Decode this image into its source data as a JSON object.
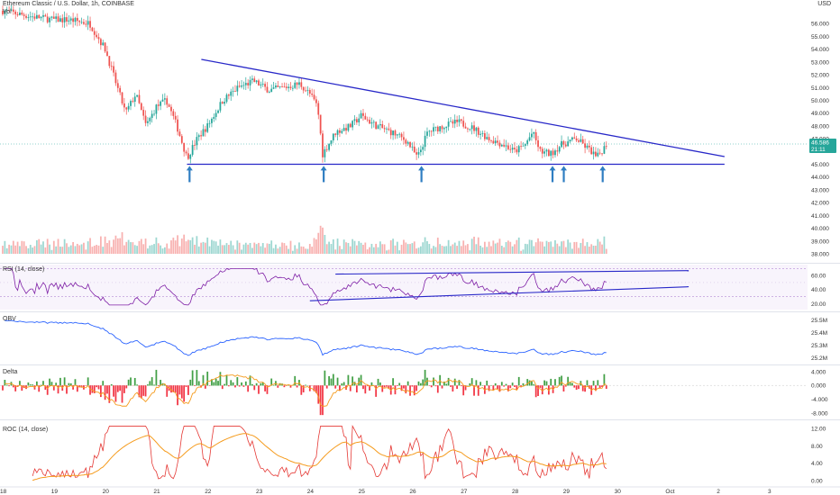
{
  "header": {
    "symbol": "Ethereum Classic / U.S. Dollar, 1h, COINBASE",
    "vol_label": "Vol",
    "currency": "USD"
  },
  "price_badge": {
    "price": "46.586",
    "countdown": "21:11"
  },
  "panes": {
    "rsi_label": "RSI (14, close)",
    "obv_label": "OBV",
    "delta_label": "Delta",
    "roc_label": "ROC (14, close)"
  },
  "colors": {
    "bull": "#26a69a",
    "bear": "#ef5350",
    "trend": "#2828c8",
    "rsi": "#7e1fa6",
    "obv": "#2962ff",
    "arrow": "#2f7ec2",
    "orange": "#f59b1d"
  },
  "chart_data": [
    {
      "type": "candlestick",
      "timeframe": "1h",
      "x_ticks": [
        "18",
        "19",
        "20",
        "21",
        "22",
        "23",
        "24",
        "25",
        "26",
        "27",
        "28",
        "29",
        "30",
        "Oct",
        "2",
        "3"
      ],
      "price_ticks": [
        "56.000",
        "55.000",
        "54.000",
        "53.000",
        "52.000",
        "51.000",
        "50.000",
        "49.000",
        "48.000",
        "47.000",
        "45.000",
        "44.000",
        "43.000",
        "42.000",
        "41.000",
        "40.000",
        "39.000",
        "38.000"
      ],
      "ylim": [
        38,
        57
      ],
      "last_price": 46.586,
      "approx_close_path": [
        [
          18.0,
          57.0
        ],
        [
          18.5,
          56.6
        ],
        [
          19.0,
          56.3
        ],
        [
          19.3,
          56.3
        ],
        [
          19.7,
          56.0
        ],
        [
          20.0,
          54.0
        ],
        [
          20.2,
          51.5
        ],
        [
          20.4,
          49.0
        ],
        [
          20.6,
          50.5
        ],
        [
          20.8,
          48.0
        ],
        [
          21.0,
          49.5
        ],
        [
          21.2,
          50.0
        ],
        [
          21.4,
          48.0
        ],
        [
          21.6,
          45.5
        ],
        [
          21.8,
          47.0
        ],
        [
          22.0,
          48.0
        ],
        [
          22.3,
          50.0
        ],
        [
          22.6,
          51.0
        ],
        [
          22.9,
          51.5
        ],
        [
          23.2,
          50.8
        ],
        [
          23.5,
          51.0
        ],
        [
          23.8,
          51.3
        ],
        [
          24.0,
          50.5
        ],
        [
          24.15,
          49.5
        ],
        [
          24.25,
          45.8
        ],
        [
          24.5,
          47.5
        ],
        [
          24.8,
          48.0
        ],
        [
          25.0,
          48.8
        ],
        [
          25.3,
          48.0
        ],
        [
          25.6,
          47.5
        ],
        [
          25.9,
          46.8
        ],
        [
          26.1,
          45.5
        ],
        [
          26.3,
          47.5
        ],
        [
          26.6,
          48.0
        ],
        [
          26.9,
          48.3
        ],
        [
          27.2,
          47.8
        ],
        [
          27.5,
          47.0
        ],
        [
          27.8,
          46.5
        ],
        [
          28.0,
          46.0
        ],
        [
          28.2,
          46.5
        ],
        [
          28.35,
          47.5
        ],
        [
          28.5,
          46.0
        ],
        [
          28.7,
          45.8
        ],
        [
          28.9,
          46.5
        ],
        [
          29.2,
          47.0
        ],
        [
          29.5,
          46.0
        ],
        [
          29.6,
          45.5
        ],
        [
          29.8,
          46.586
        ]
      ],
      "trendlines": [
        {
          "from": [
            21.88,
            53.2
          ],
          "to": [
            32.1,
            45.6
          ]
        },
        {
          "from": [
            21.6,
            45.0
          ],
          "to": [
            32.1,
            45.0
          ]
        }
      ],
      "support_arrows_x": [
        21.65,
        24.27,
        26.18,
        28.74,
        28.96,
        29.72
      ]
    },
    {
      "type": "bar",
      "name": "Volume",
      "y_axis_hidden": true
    },
    {
      "type": "line",
      "name": "RSI (14, close)",
      "y_ticks": [
        "60.00",
        "40.00",
        "20.00"
      ],
      "ylim": [
        14,
        73
      ],
      "band": [
        30,
        70
      ],
      "channel": [
        {
          "from": [
            24.5,
            62
          ],
          "to": [
            31.4,
            67
          ]
        },
        {
          "from": [
            24.0,
            24
          ],
          "to": [
            31.4,
            44
          ]
        }
      ]
    },
    {
      "type": "line",
      "name": "OBV",
      "y_ticks": [
        "25.5M",
        "25.4M",
        "25.3M",
        "25.2M"
      ]
    },
    {
      "type": "bar",
      "name": "Delta",
      "y_ticks": [
        "4.000",
        "0.000",
        "-4.000",
        "-8.000"
      ],
      "ylim": [
        -8.8,
        5
      ]
    },
    {
      "type": "line",
      "name": "ROC (14, close)",
      "y_ticks": [
        "12.00",
        "8.00",
        "4.00",
        "0.00"
      ],
      "ylim": [
        -0.8,
        13
      ]
    }
  ]
}
